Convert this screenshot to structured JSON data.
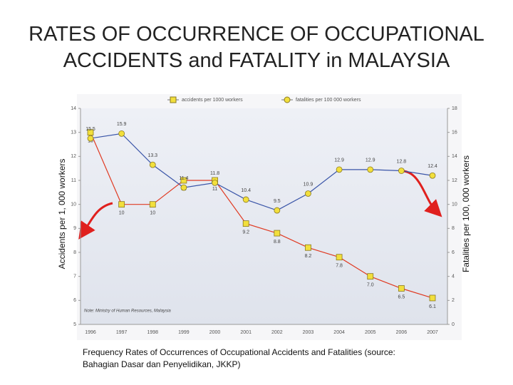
{
  "chart_data": {
    "type": "line",
    "title": "RATES OF OCCURRENCE OF OCCUPATIONAL ACCIDENTS and FATALITY in MALAYSIA",
    "y_label": "Accidents per 1, 000 workers",
    "y2_label": "Fatalities per 100, 000 workers",
    "note": "Note: Ministry of Human Resources, Malaysia",
    "caption": "Frequency Rates of Occurrences of Occupational Accidents and Fatalities (source: Bahagian Dasar dan Penyelidikan, JKKP)",
    "categories": [
      "1996",
      "1997",
      "1998",
      "1999",
      "2000",
      "2001",
      "2002",
      "2003",
      "2004",
      "2005",
      "2006",
      "2007"
    ],
    "series": [
      {
        "name": "accidents per 1000 workers",
        "color": "#e03a22",
        "marker_color": "#f2df3c",
        "marker": "square",
        "values": [
          13,
          10,
          10,
          11,
          11,
          9.2,
          8.8,
          8.2,
          7.8,
          7.0,
          6.5,
          6.1
        ],
        "value_labels": [
          "13",
          "10",
          "10",
          "11",
          "11",
          "9.2",
          "8.8",
          "8.2",
          "7.8",
          "7.0",
          "6.5",
          "6.1"
        ]
      },
      {
        "name": "fatalities per 100 000 workers",
        "color": "#3a55a8",
        "marker_color": "#f2df3c",
        "marker": "circle",
        "axis": "y2",
        "values": [
          15.5,
          15.9,
          13.3,
          11.4,
          11.8,
          10.4,
          9.5,
          10.9,
          12.9,
          12.9,
          12.8,
          12.4
        ]
      }
    ],
    "ylim": [
      5,
      14
    ],
    "yticks": [
      5,
      6,
      7,
      8,
      9,
      10,
      11,
      12,
      13,
      14
    ],
    "y2lim": [
      0,
      18
    ],
    "y2ticks": [
      0,
      2,
      4,
      6,
      8,
      10,
      12,
      14,
      16,
      18
    ],
    "legend": "top"
  }
}
